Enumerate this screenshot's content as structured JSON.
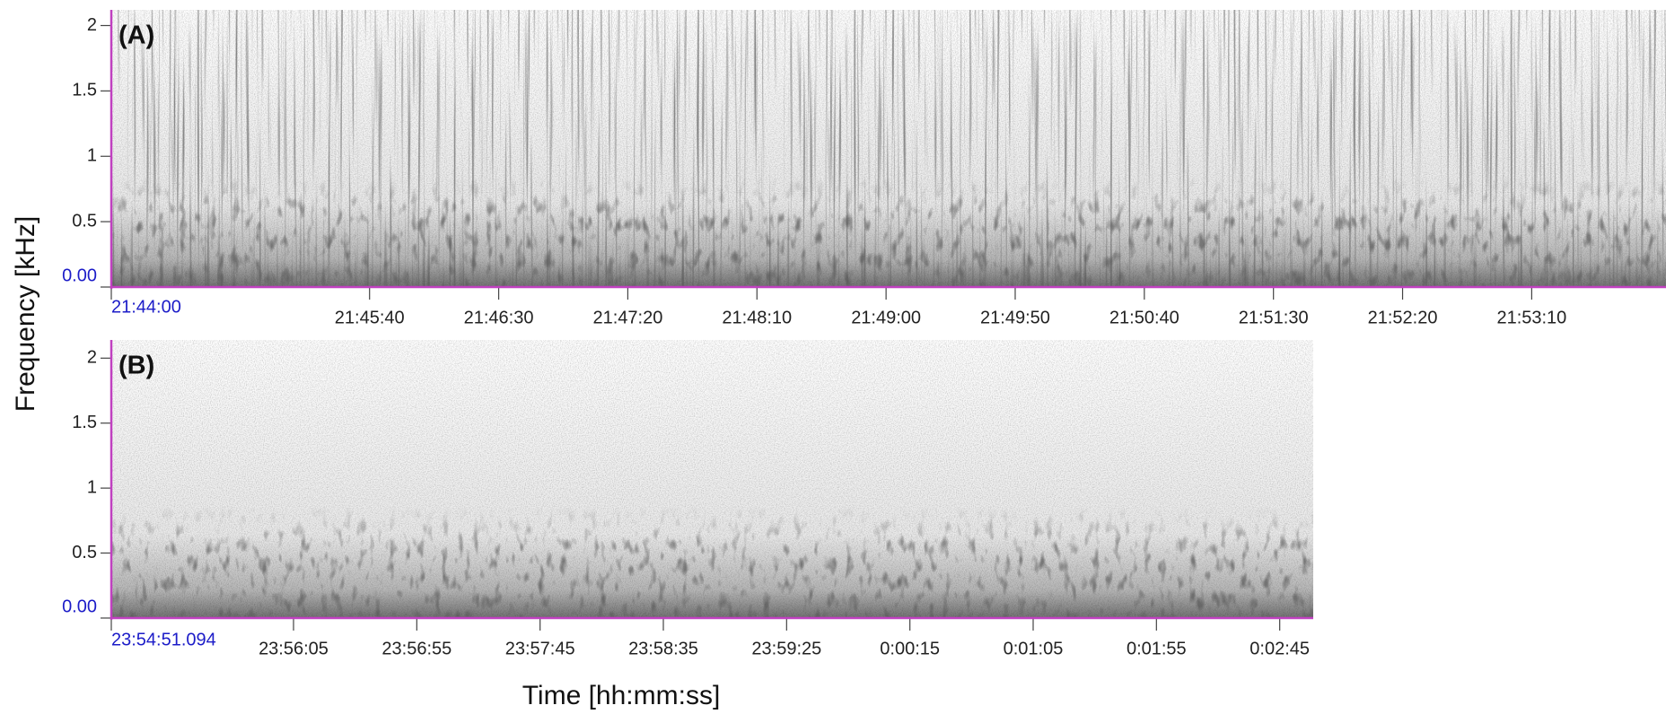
{
  "chart_data": [
    {
      "type": "spectrogram",
      "panel_label": "(A)",
      "ylabel": "Frequency [kHz]",
      "ylim": [
        0,
        2.12
      ],
      "yticks": [
        {
          "value": 0,
          "label": "0.00"
        },
        0.5,
        1,
        1.5,
        2
      ],
      "xlim": [
        0,
        602
      ],
      "xticks": [
        {
          "value": 0,
          "label": "21:44:00"
        },
        {
          "value": 100,
          "label": "21:45:40"
        },
        {
          "value": 150,
          "label": "21:46:30"
        },
        {
          "value": 200,
          "label": "21:47:20"
        },
        {
          "value": 250,
          "label": "21:48:10"
        },
        {
          "value": 300,
          "label": "21:49:00"
        },
        {
          "value": 350,
          "label": "21:49:50"
        },
        {
          "value": 400,
          "label": "21:50:40"
        },
        {
          "value": 450,
          "label": "21:51:30"
        },
        {
          "value": 500,
          "label": "21:52:20"
        },
        {
          "value": 550,
          "label": "21:53:10"
        }
      ],
      "axis_color": "#c040c0",
      "origin_label_color": "#1c1cc8",
      "streaks": true
    },
    {
      "type": "spectrogram",
      "panel_label": "(B)",
      "xlabel": "Time [hh:mm:ss]",
      "ylim": [
        0,
        2.14
      ],
      "yticks": [
        {
          "value": 0,
          "label": "0.00"
        },
        0.5,
        1,
        1.5,
        2
      ],
      "xlim": [
        0,
        487.5
      ],
      "xticks": [
        {
          "value": 0,
          "label": "23:54:51.094"
        },
        {
          "value": 73.906,
          "label": "23:56:05"
        },
        {
          "value": 123.906,
          "label": "23:56:55"
        },
        {
          "value": 173.906,
          "label": "23:57:45"
        },
        {
          "value": 223.906,
          "label": "23:58:35"
        },
        {
          "value": 273.906,
          "label": "23:59:25"
        },
        {
          "value": 323.906,
          "label": "0:00:15"
        },
        {
          "value": 373.906,
          "label": "0:01:05"
        },
        {
          "value": 423.906,
          "label": "0:01:55"
        },
        {
          "value": 473.906,
          "label": "0:02:45"
        }
      ],
      "axis_color": "#c040c0",
      "origin_label_color": "#1c1cc8",
      "streaks": false
    }
  ]
}
